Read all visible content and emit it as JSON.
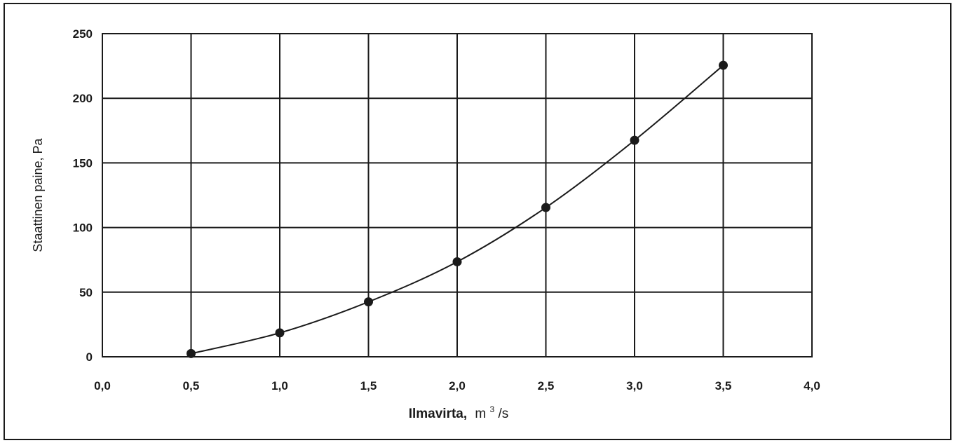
{
  "chart_data": {
    "type": "line",
    "xlabel_main": "Ilmavirta,",
    "xlabel_unit": "m",
    "xlabel_sup": "3",
    "xlabel_tail": "/s",
    "ylabel": "Staattinen paine, Pa",
    "xlim": [
      0,
      4
    ],
    "ylim": [
      0,
      250
    ],
    "grid": true,
    "x_ticks": [
      0,
      0.5,
      1,
      1.5,
      2,
      2.5,
      3,
      3.5,
      4
    ],
    "x_tick_labels": [
      "0,0",
      "0,5",
      "1,0",
      "1,5",
      "2,0",
      "2,5",
      "3,0",
      "3,5",
      "4,0"
    ],
    "y_ticks": [
      0,
      50,
      100,
      150,
      200,
      250
    ],
    "y_tick_labels": [
      "0",
      "50",
      "100",
      "150",
      "200",
      "250"
    ],
    "series": [
      {
        "x": [
          0.5,
          1.0,
          1.5,
          2.0,
          2.5,
          3.0,
          3.5
        ],
        "y": [
          2.5,
          18.5,
          42.5,
          73.5,
          115.5,
          167.5,
          225.5
        ]
      }
    ],
    "colors": {
      "line": "#1a1a1a",
      "grid": "#1a1a1a",
      "marker": "#1a1a1a"
    }
  }
}
